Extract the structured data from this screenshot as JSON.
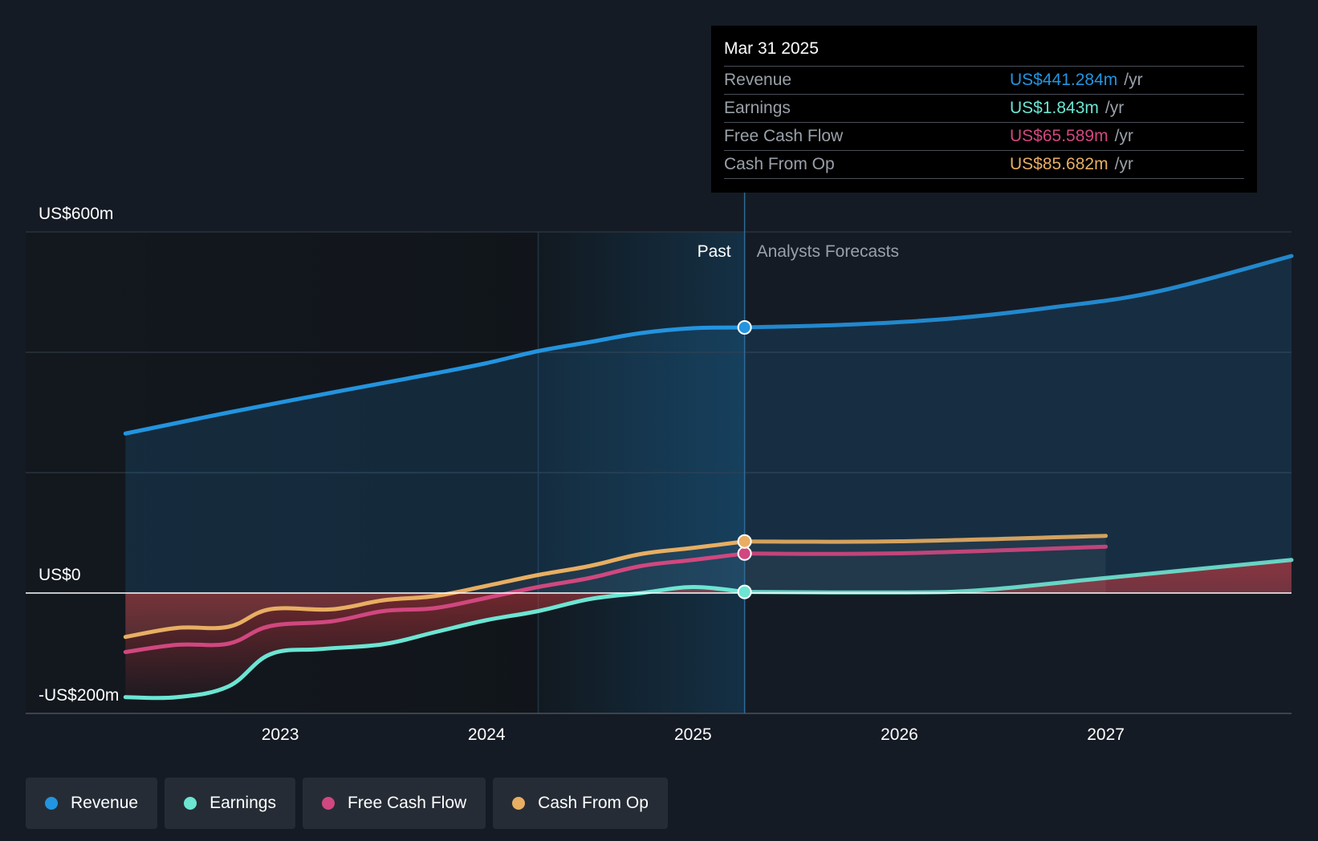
{
  "colors": {
    "background": "#151b24",
    "revenue": "#2394df",
    "earnings": "#6ce5d3",
    "free_cash_flow": "#d1477f",
    "cash_from_op": "#e8ae62"
  },
  "tooltip": {
    "date": "Mar 31 2025",
    "rows": [
      {
        "label": "Revenue",
        "value": "US$441.284m",
        "unit": "/yr",
        "color": "#2394df"
      },
      {
        "label": "Earnings",
        "value": "US$1.843m",
        "unit": "/yr",
        "color": "#6ce5d3"
      },
      {
        "label": "Free Cash Flow",
        "value": "US$65.589m",
        "unit": "/yr",
        "color": "#d1477f"
      },
      {
        "label": "Cash From Op",
        "value": "US$85.682m",
        "unit": "/yr",
        "color": "#e8ae62"
      }
    ]
  },
  "legend": [
    {
      "label": "Revenue",
      "color": "#2394df"
    },
    {
      "label": "Earnings",
      "color": "#6ce5d3"
    },
    {
      "label": "Free Cash Flow",
      "color": "#d1477f"
    },
    {
      "label": "Cash From Op",
      "color": "#e8ae62"
    }
  ],
  "chart_data": {
    "type": "line",
    "y_axis_labels": [
      "US$600m",
      "US$0",
      "-US$200m"
    ],
    "ylim": [
      -200,
      600
    ],
    "xlim": [
      2022.0,
      2027.9
    ],
    "x_ticks": [
      "2023",
      "2024",
      "2025",
      "2026",
      "2027"
    ],
    "x_tick_values": [
      2023,
      2024,
      2025,
      2026,
      2027
    ],
    "gridlines": [
      600,
      400,
      200,
      0,
      -200
    ],
    "divider_x": 2025.25,
    "highlight_start_x": 2024.25,
    "section_labels": {
      "past": "Past",
      "forecast": "Analysts Forecasts"
    },
    "series": [
      {
        "name": "Revenue",
        "key": "revenue",
        "past": [
          [
            2022.25,
            265
          ],
          [
            2022.75,
            300
          ],
          [
            2023.25,
            333
          ],
          [
            2023.75,
            365
          ],
          [
            2024.0,
            382
          ],
          [
            2024.25,
            402
          ],
          [
            2024.5,
            417
          ],
          [
            2024.75,
            432
          ],
          [
            2025.0,
            440
          ],
          [
            2025.25,
            441.3
          ]
        ],
        "forecast": [
          [
            2025.25,
            441.3
          ],
          [
            2025.75,
            446
          ],
          [
            2026.25,
            456
          ],
          [
            2026.75,
            475
          ],
          [
            2027.25,
            501
          ],
          [
            2027.9,
            560
          ]
        ]
      },
      {
        "name": "Earnings",
        "key": "earnings",
        "past": [
          [
            2022.25,
            -173
          ],
          [
            2022.5,
            -173
          ],
          [
            2022.75,
            -155
          ],
          [
            2022.95,
            -102
          ],
          [
            2023.2,
            -93
          ],
          [
            2023.5,
            -85
          ],
          [
            2023.75,
            -65
          ],
          [
            2024.0,
            -45
          ],
          [
            2024.25,
            -30
          ],
          [
            2024.5,
            -10
          ],
          [
            2024.75,
            0
          ],
          [
            2025.0,
            10
          ],
          [
            2025.25,
            1.8
          ]
        ],
        "forecast": [
          [
            2025.25,
            1.8
          ],
          [
            2026.0,
            1
          ],
          [
            2026.4,
            5
          ],
          [
            2027.0,
            25
          ],
          [
            2027.9,
            55
          ]
        ]
      },
      {
        "name": "Free Cash Flow",
        "key": "free_cash_flow",
        "past": [
          [
            2022.25,
            -98
          ],
          [
            2022.5,
            -86
          ],
          [
            2022.75,
            -84
          ],
          [
            2022.95,
            -55
          ],
          [
            2023.25,
            -47
          ],
          [
            2023.5,
            -30
          ],
          [
            2023.75,
            -25
          ],
          [
            2024.0,
            -8
          ],
          [
            2024.25,
            10
          ],
          [
            2024.5,
            25
          ],
          [
            2024.75,
            45
          ],
          [
            2025.0,
            55
          ],
          [
            2025.25,
            65.6
          ]
        ],
        "forecast": [
          [
            2025.25,
            65.6
          ],
          [
            2026.0,
            66
          ],
          [
            2027.0,
            77
          ]
        ]
      },
      {
        "name": "Cash From Op",
        "key": "cash_from_op",
        "past": [
          [
            2022.25,
            -73
          ],
          [
            2022.5,
            -58
          ],
          [
            2022.75,
            -56
          ],
          [
            2022.95,
            -27
          ],
          [
            2023.25,
            -27
          ],
          [
            2023.5,
            -12
          ],
          [
            2023.75,
            -5
          ],
          [
            2024.0,
            12
          ],
          [
            2024.25,
            30
          ],
          [
            2024.5,
            45
          ],
          [
            2024.75,
            65
          ],
          [
            2025.0,
            75
          ],
          [
            2025.25,
            85.7
          ]
        ],
        "forecast": [
          [
            2025.25,
            85.7
          ],
          [
            2026.0,
            86
          ],
          [
            2027.0,
            95
          ]
        ]
      }
    ]
  }
}
